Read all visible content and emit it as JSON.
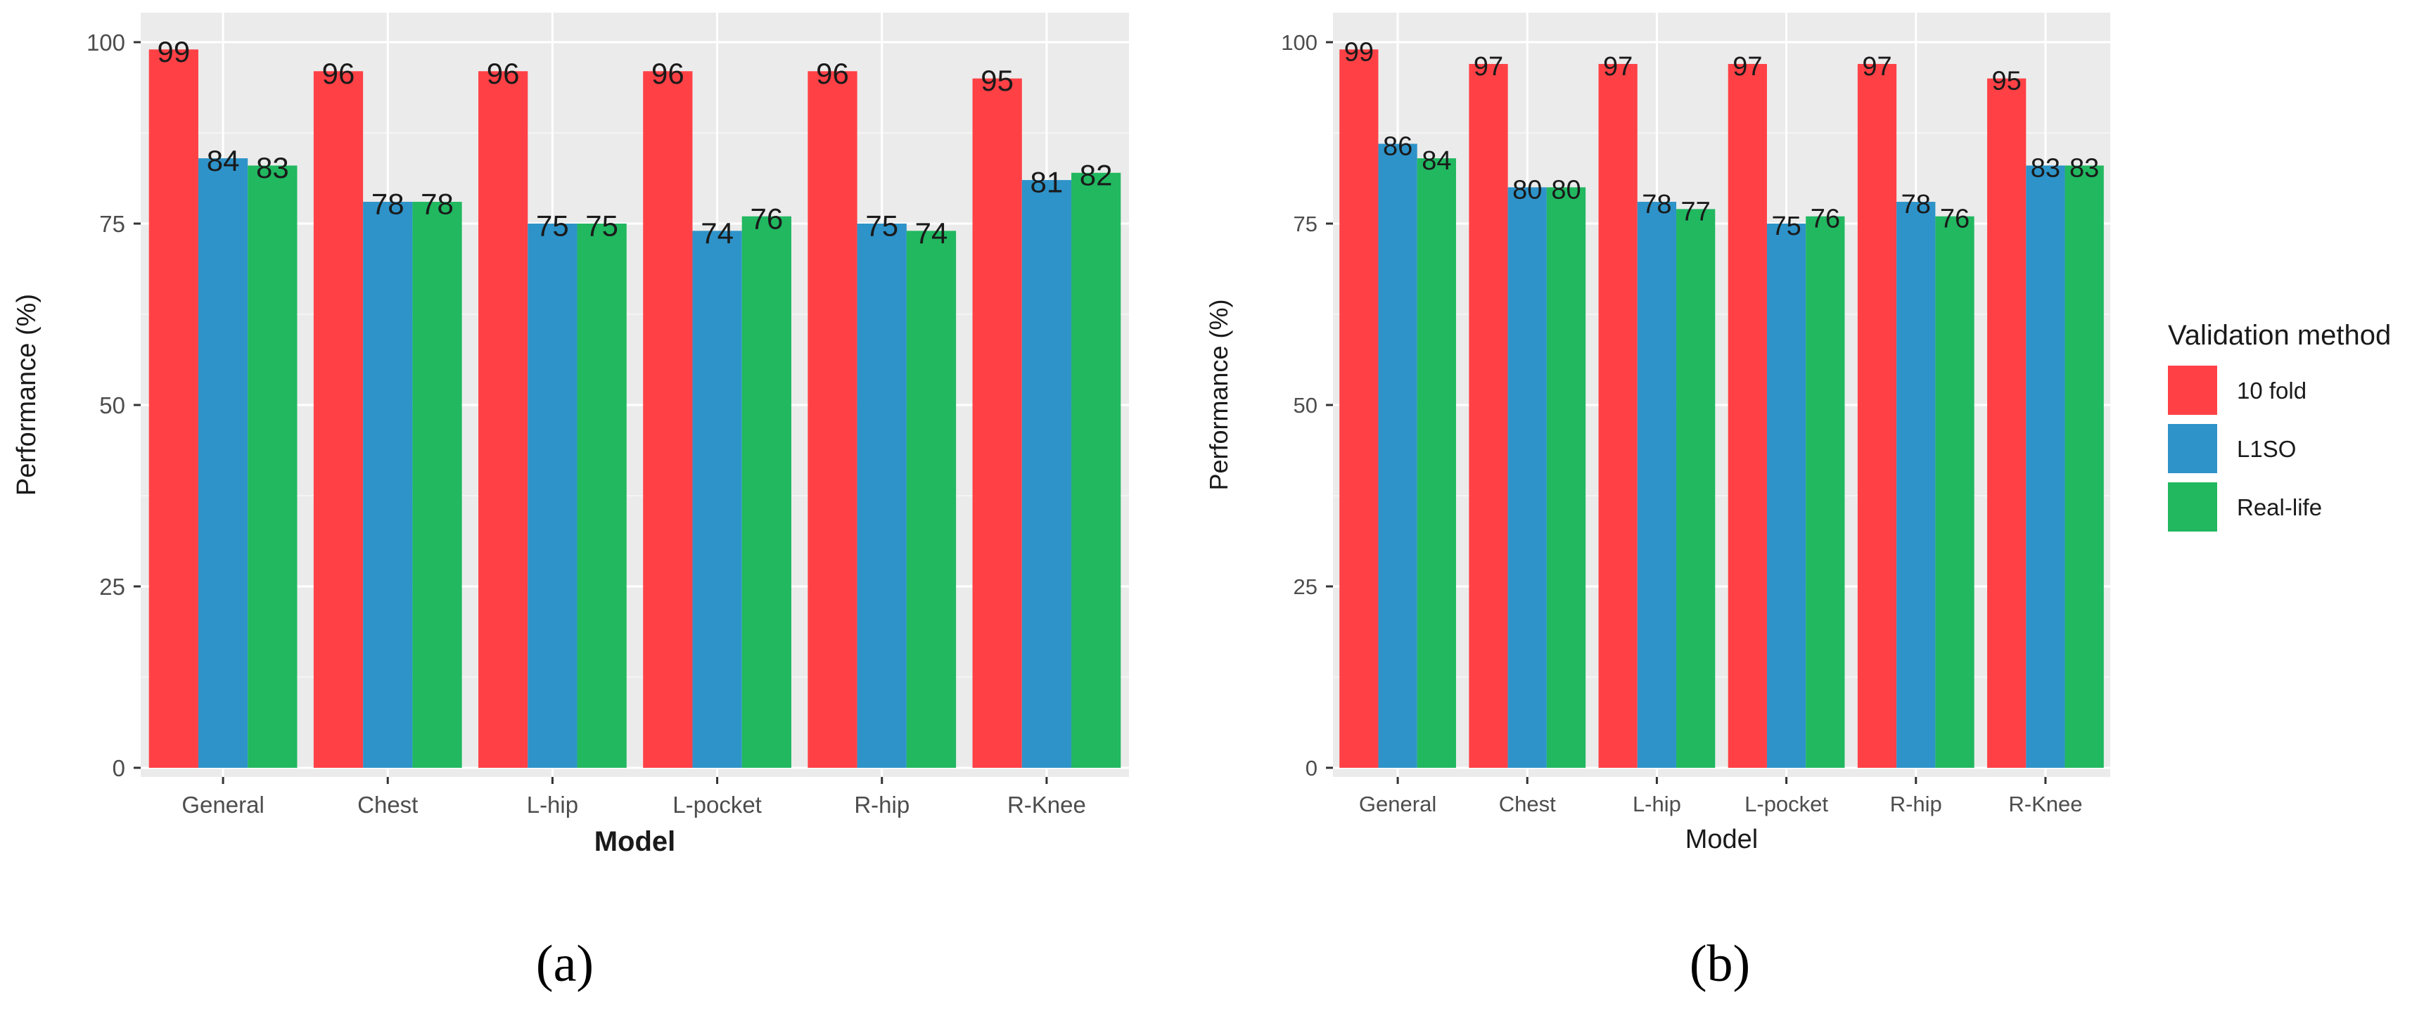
{
  "colors": {
    "panel_bg": "#EBEBEB",
    "grid_major": "#FFFFFF",
    "grid_minor": "#F4F4F4",
    "text": "#1A1A1A",
    "tick_text": "#4D4D4D",
    "series": [
      "#FF4146",
      "#2E93C9",
      "#21B860"
    ]
  },
  "legend": {
    "title": "Validation  method",
    "items": [
      "10 fold",
      "L1SO",
      "Real-life"
    ],
    "position": "right"
  },
  "chart_data": [
    {
      "type": "bar",
      "panel_label": "a",
      "caption": "(a)",
      "title": "",
      "xlabel": "Model",
      "ylabel": "Performance (%)",
      "ylim": [
        0,
        100
      ],
      "yticks": [
        0,
        25,
        50,
        75,
        100
      ],
      "grid": true,
      "categories": [
        "General",
        "Chest",
        "L-hip",
        "L-pocket",
        "R-hip",
        "R-Knee"
      ],
      "series": [
        {
          "name": "10 fold",
          "values": [
            99,
            96,
            96,
            96,
            96,
            95
          ]
        },
        {
          "name": "L1SO",
          "values": [
            84,
            78,
            75,
            74,
            75,
            81
          ]
        },
        {
          "name": "Real-life",
          "values": [
            83,
            78,
            75,
            76,
            74,
            82
          ]
        }
      ]
    },
    {
      "type": "bar",
      "panel_label": "b",
      "caption": "(b)",
      "title": "",
      "xlabel": "Model",
      "ylabel": "Performance (%)",
      "ylim": [
        0,
        100
      ],
      "yticks": [
        0,
        25,
        50,
        75,
        100
      ],
      "grid": true,
      "categories": [
        "General",
        "Chest",
        "L-hip",
        "L-pocket",
        "R-hip",
        "R-Knee"
      ],
      "series": [
        {
          "name": "10 fold",
          "values": [
            99,
            97,
            97,
            97,
            97,
            95
          ]
        },
        {
          "name": "L1SO",
          "values": [
            86,
            80,
            78,
            75,
            78,
            83
          ]
        },
        {
          "name": "Real-life",
          "values": [
            84,
            80,
            77,
            76,
            76,
            83
          ]
        }
      ]
    }
  ]
}
